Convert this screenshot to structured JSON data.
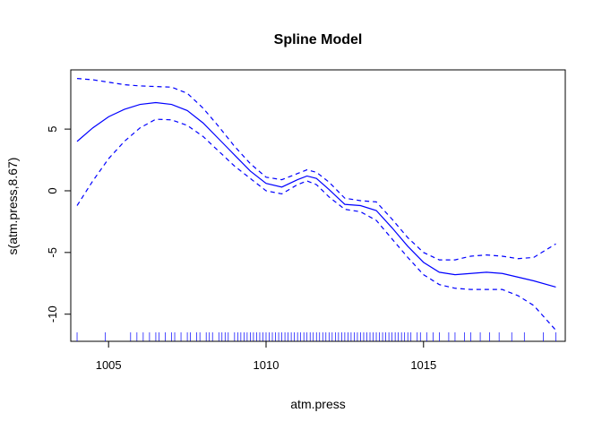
{
  "chart_data": {
    "type": "line",
    "title": "Spline Model",
    "xlabel": "atm.press",
    "ylabel": "s(atm.press,8.67)",
    "xlim": [
      1003.8,
      1019.5
    ],
    "ylim": [
      -12.2,
      9.8
    ],
    "x_ticks": [
      1005,
      1010,
      1015
    ],
    "y_ticks": [
      -10,
      -5,
      0,
      5
    ],
    "grid": false,
    "legend": "none",
    "series": [
      {
        "role": "fit",
        "style": "solid",
        "color": "#0000ff",
        "x": [
          1004.0,
          1004.5,
          1005.0,
          1005.5,
          1006.0,
          1006.5,
          1007.0,
          1007.5,
          1008.0,
          1008.5,
          1009.0,
          1009.5,
          1010.0,
          1010.5,
          1011.0,
          1011.3,
          1011.6,
          1012.0,
          1012.5,
          1013.0,
          1013.5,
          1014.0,
          1014.5,
          1015.0,
          1015.5,
          1016.0,
          1016.5,
          1017.0,
          1017.5,
          1018.0,
          1018.5,
          1019.2
        ],
        "y": [
          4.0,
          5.1,
          6.0,
          6.6,
          7.0,
          7.15,
          7.0,
          6.5,
          5.5,
          4.2,
          2.9,
          1.6,
          0.6,
          0.3,
          0.9,
          1.2,
          1.0,
          0.1,
          -1.1,
          -1.2,
          -1.6,
          -3.0,
          -4.5,
          -5.8,
          -6.6,
          -6.8,
          -6.7,
          -6.6,
          -6.7,
          -7.0,
          -7.3,
          -7.8
        ]
      },
      {
        "role": "upper-ci",
        "style": "dashed",
        "color": "#0000ff",
        "x": [
          1004.0,
          1004.5,
          1005.0,
          1005.5,
          1006.0,
          1006.5,
          1007.0,
          1007.5,
          1008.0,
          1008.5,
          1009.0,
          1009.5,
          1010.0,
          1010.5,
          1011.0,
          1011.3,
          1011.6,
          1012.0,
          1012.5,
          1013.0,
          1013.5,
          1014.0,
          1014.5,
          1015.0,
          1015.5,
          1016.0,
          1016.5,
          1017.0,
          1017.5,
          1018.0,
          1018.5,
          1019.2
        ],
        "y": [
          9.1,
          9.0,
          8.8,
          8.6,
          8.5,
          8.45,
          8.4,
          7.9,
          6.7,
          5.2,
          3.6,
          2.2,
          1.1,
          0.9,
          1.4,
          1.7,
          1.5,
          0.7,
          -0.6,
          -0.8,
          -0.9,
          -2.3,
          -3.8,
          -5.0,
          -5.6,
          -5.6,
          -5.3,
          -5.2,
          -5.3,
          -5.5,
          -5.4,
          -4.3
        ]
      },
      {
        "role": "lower-ci",
        "style": "dashed",
        "color": "#0000ff",
        "x": [
          1004.0,
          1004.5,
          1005.0,
          1005.5,
          1006.0,
          1006.5,
          1007.0,
          1007.5,
          1008.0,
          1008.5,
          1009.0,
          1009.5,
          1010.0,
          1010.5,
          1011.0,
          1011.3,
          1011.6,
          1012.0,
          1012.5,
          1013.0,
          1013.5,
          1014.0,
          1014.5,
          1015.0,
          1015.5,
          1016.0,
          1016.5,
          1017.0,
          1017.5,
          1018.0,
          1018.5,
          1019.2
        ],
        "y": [
          -1.2,
          0.8,
          2.6,
          4.0,
          5.1,
          5.8,
          5.75,
          5.3,
          4.4,
          3.2,
          2.0,
          1.0,
          0.0,
          -0.25,
          0.5,
          0.8,
          0.5,
          -0.5,
          -1.5,
          -1.7,
          -2.4,
          -3.9,
          -5.4,
          -6.8,
          -7.6,
          -7.9,
          -8.0,
          -8.0,
          -8.0,
          -8.5,
          -9.3,
          -11.3
        ]
      }
    ],
    "rug": {
      "color": "#0000ff",
      "x": [
        1004.0,
        1004.9,
        1005.7,
        1005.9,
        1006.1,
        1006.3,
        1006.5,
        1006.6,
        1006.8,
        1007.0,
        1007.1,
        1007.3,
        1007.5,
        1007.6,
        1007.8,
        1007.9,
        1008.1,
        1008.2,
        1008.3,
        1008.5,
        1008.6,
        1008.7,
        1008.8,
        1009.0,
        1009.1,
        1009.2,
        1009.3,
        1009.4,
        1009.5,
        1009.6,
        1009.7,
        1009.8,
        1009.9,
        1010.0,
        1010.1,
        1010.2,
        1010.3,
        1010.4,
        1010.5,
        1010.6,
        1010.7,
        1010.8,
        1010.9,
        1011.0,
        1011.1,
        1011.2,
        1011.3,
        1011.4,
        1011.5,
        1011.6,
        1011.7,
        1011.8,
        1011.9,
        1012.0,
        1012.1,
        1012.2,
        1012.3,
        1012.4,
        1012.5,
        1012.6,
        1012.7,
        1012.8,
        1012.9,
        1013.0,
        1013.1,
        1013.2,
        1013.3,
        1013.4,
        1013.5,
        1013.6,
        1013.7,
        1013.8,
        1013.9,
        1014.0,
        1014.1,
        1014.2,
        1014.3,
        1014.4,
        1014.5,
        1014.6,
        1014.8,
        1014.9,
        1015.1,
        1015.3,
        1015.5,
        1015.8,
        1016.0,
        1016.3,
        1016.5,
        1016.8,
        1017.1,
        1017.4,
        1017.8,
        1018.2,
        1018.8,
        1019.2
      ]
    }
  }
}
